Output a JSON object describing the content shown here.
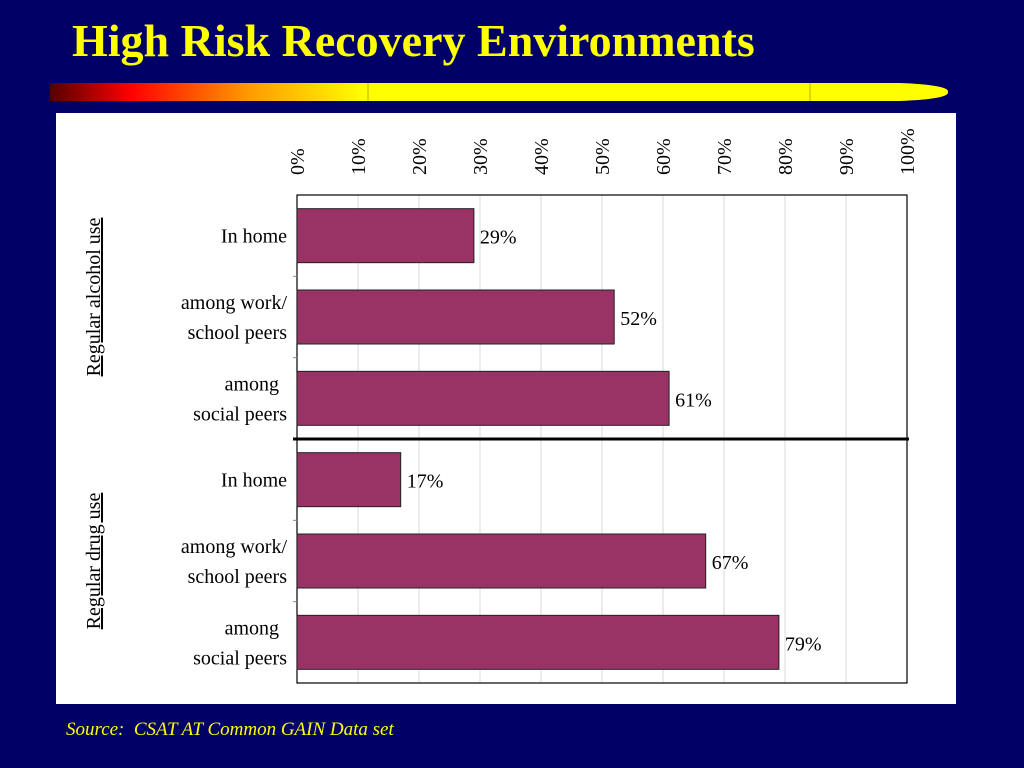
{
  "slide": {
    "title": "High Risk Recovery Environments",
    "source": "Source:  CSAT AT Common GAIN Data set"
  },
  "colors": {
    "background": "#000066",
    "title": "#ffff00",
    "bar_fill": "#993366",
    "panel": "#ffffff"
  },
  "chart_data": {
    "type": "bar",
    "orientation": "horizontal",
    "xlim": [
      0,
      100
    ],
    "x_ticks": [
      "0%",
      "10%",
      "20%",
      "30%",
      "40%",
      "50%",
      "60%",
      "70%",
      "80%",
      "90%",
      "100%"
    ],
    "x_axis_position": "top",
    "grid": true,
    "groups": [
      {
        "name": "Regular alcohol use",
        "bars": [
          {
            "label": [
              "In home"
            ],
            "value": 29,
            "value_label": "29%"
          },
          {
            "label": [
              "among work/",
              "school peers"
            ],
            "value": 52,
            "value_label": "52%"
          },
          {
            "label": [
              "among",
              "social peers"
            ],
            "value": 61,
            "value_label": "61%"
          }
        ]
      },
      {
        "name": "Regular drug use",
        "bars": [
          {
            "label": [
              "In home"
            ],
            "value": 17,
            "value_label": "17%"
          },
          {
            "label": [
              "among work/",
              "school peers"
            ],
            "value": 67,
            "value_label": "67%"
          },
          {
            "label": [
              "among",
              "social peers"
            ],
            "value": 79,
            "value_label": "79%"
          }
        ]
      }
    ]
  }
}
